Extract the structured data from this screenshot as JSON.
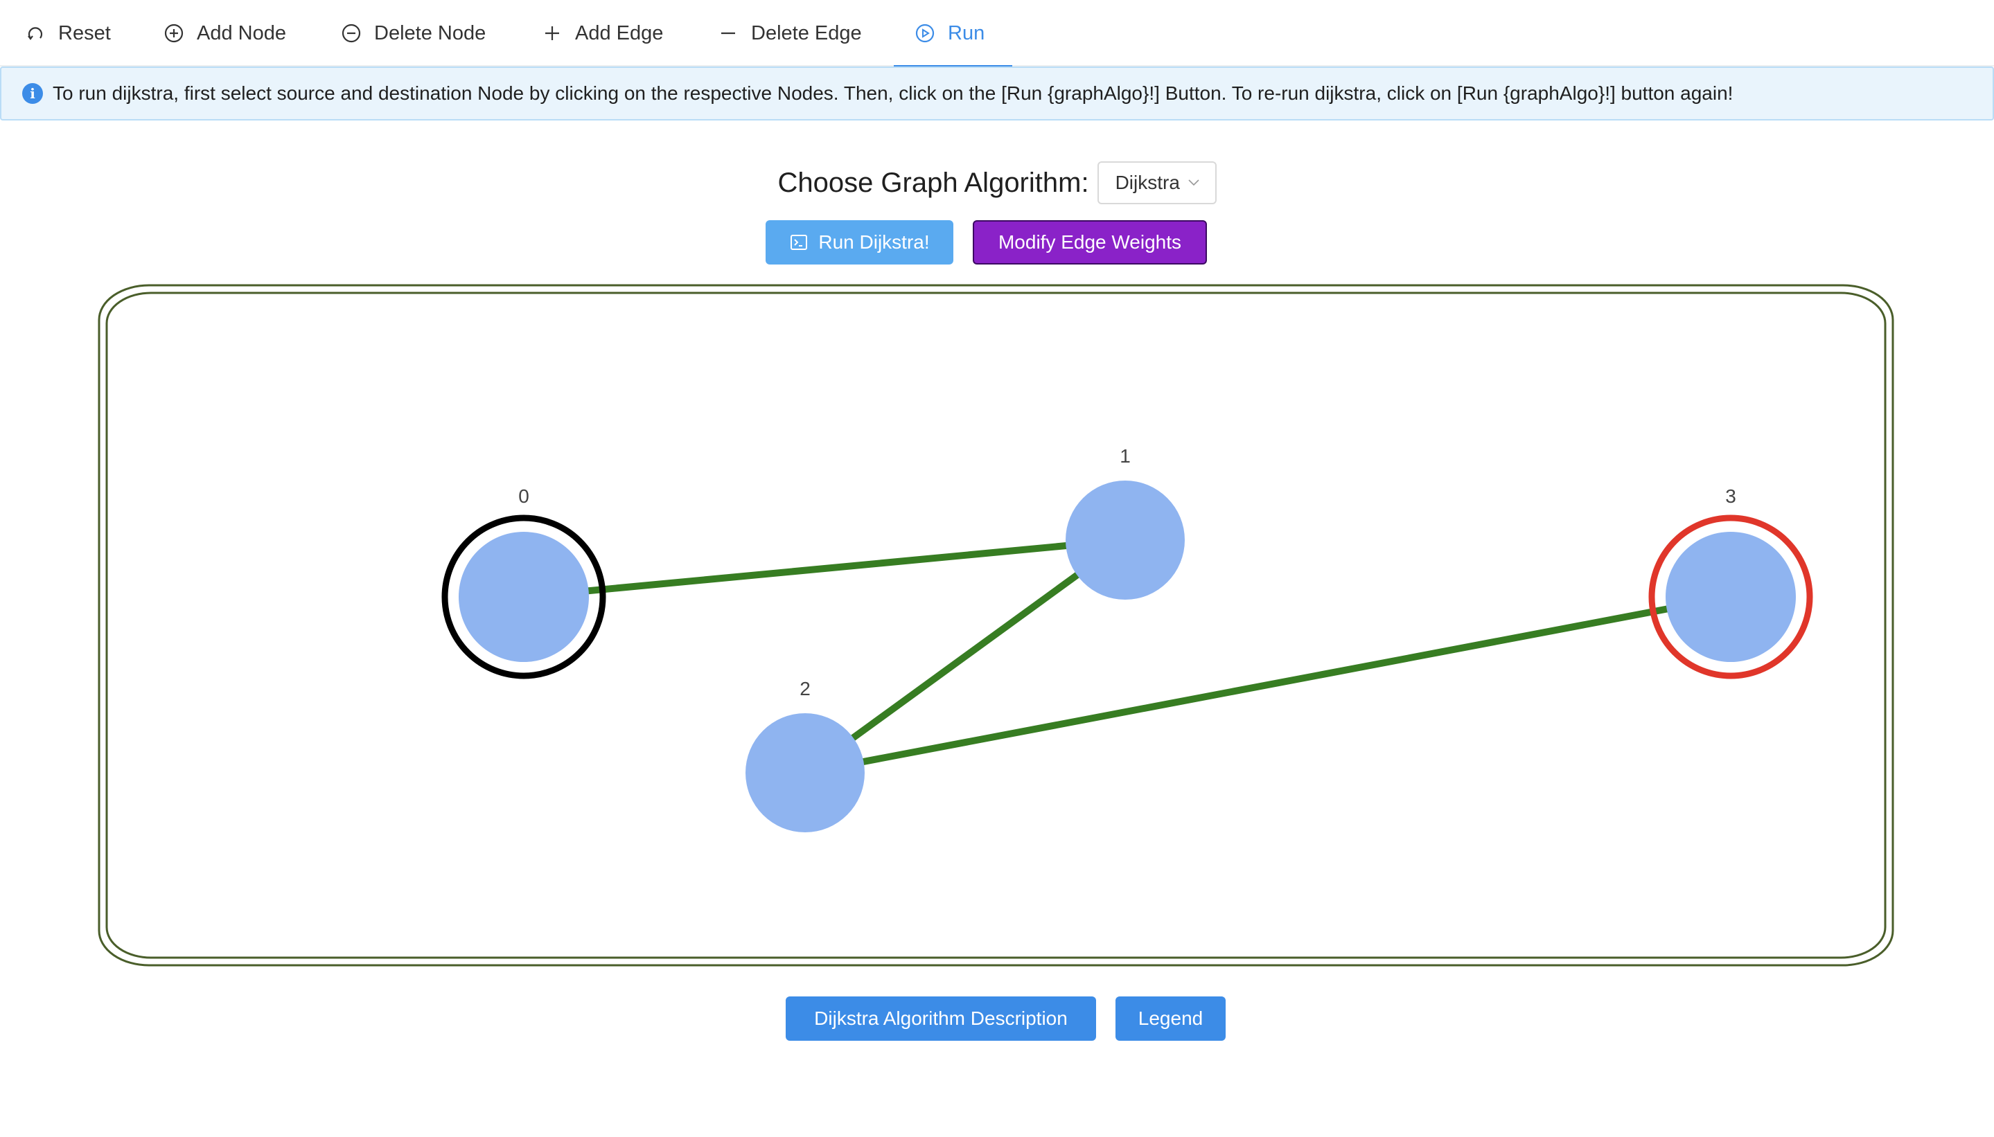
{
  "menu": {
    "items": [
      {
        "id": "reset",
        "label": "Reset",
        "icon": "reset-icon"
      },
      {
        "id": "addnode",
        "label": "Add Node",
        "icon": "plus-circle-icon"
      },
      {
        "id": "delnode",
        "label": "Delete Node",
        "icon": "minus-circle-icon"
      },
      {
        "id": "addedge",
        "label": "Add Edge",
        "icon": "plus-icon"
      },
      {
        "id": "deledge",
        "label": "Delete Edge",
        "icon": "minus-icon"
      },
      {
        "id": "run",
        "label": "Run",
        "icon": "play-circle-icon",
        "active": true
      }
    ]
  },
  "alert": {
    "icon": "info-icon",
    "message": "To run dijkstra, first select source and destination Node by clicking on the respective Nodes. Then, click on the [Run {graphAlgo}!] Button. To re-run dijkstra, click on [Run {graphAlgo}!] button again!"
  },
  "algorithm": {
    "label": "Choose Graph Algorithm:",
    "selected": "Dijkstra"
  },
  "buttons": {
    "run": "Run Dijkstra!",
    "modify": "Modify Edge Weights",
    "description": "Dijkstra Algorithm Description",
    "legend": "Legend"
  },
  "graph": {
    "nodes": [
      {
        "id": "0",
        "label": "0",
        "role": "source"
      },
      {
        "id": "1",
        "label": "1",
        "role": "none"
      },
      {
        "id": "2",
        "label": "2",
        "role": "none"
      },
      {
        "id": "3",
        "label": "3",
        "role": "destination"
      }
    ],
    "edges": [
      {
        "from": "0",
        "to": "1"
      },
      {
        "from": "1",
        "to": "2"
      },
      {
        "from": "2",
        "to": "3"
      }
    ]
  },
  "colors": {
    "accent": "#3c8ce7",
    "node_fill": "#8fb4f0",
    "edge": "#377d22",
    "source_ring": "#000000",
    "destination_ring": "#e0362a",
    "canvas_border": "#4a5e2a",
    "modify_button": "#8a22c8"
  }
}
